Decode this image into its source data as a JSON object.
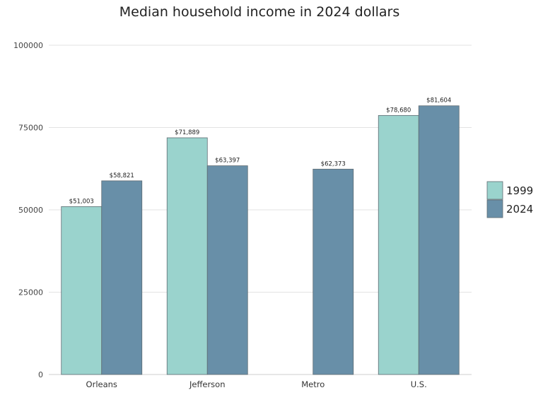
{
  "chart_data": {
    "type": "bar",
    "title": "Median household income in 2024 dollars",
    "xlabel": "",
    "ylabel": "",
    "categories": [
      "Orleans",
      "Jefferson",
      "Metro",
      "U.S."
    ],
    "series": [
      {
        "name": "1999",
        "color": "#9ad3cd",
        "values": [
          51003,
          71889,
          0,
          78680
        ],
        "labels": [
          "$51,003",
          "$71,889",
          "",
          "$78,680"
        ]
      },
      {
        "name": "2024",
        "color": "#688fa8",
        "values": [
          58821,
          63397,
          62373,
          81604
        ],
        "labels": [
          "$58,821",
          "$63,397",
          "$62,373",
          "$81,604"
        ]
      }
    ],
    "ylim": [
      0,
      100000
    ],
    "yticks": [
      0,
      25000,
      50000,
      75000,
      100000
    ],
    "ytick_labels": [
      "0",
      "25000",
      "50000",
      "75000",
      "100000"
    ],
    "grid": true,
    "legend_position": "right"
  }
}
